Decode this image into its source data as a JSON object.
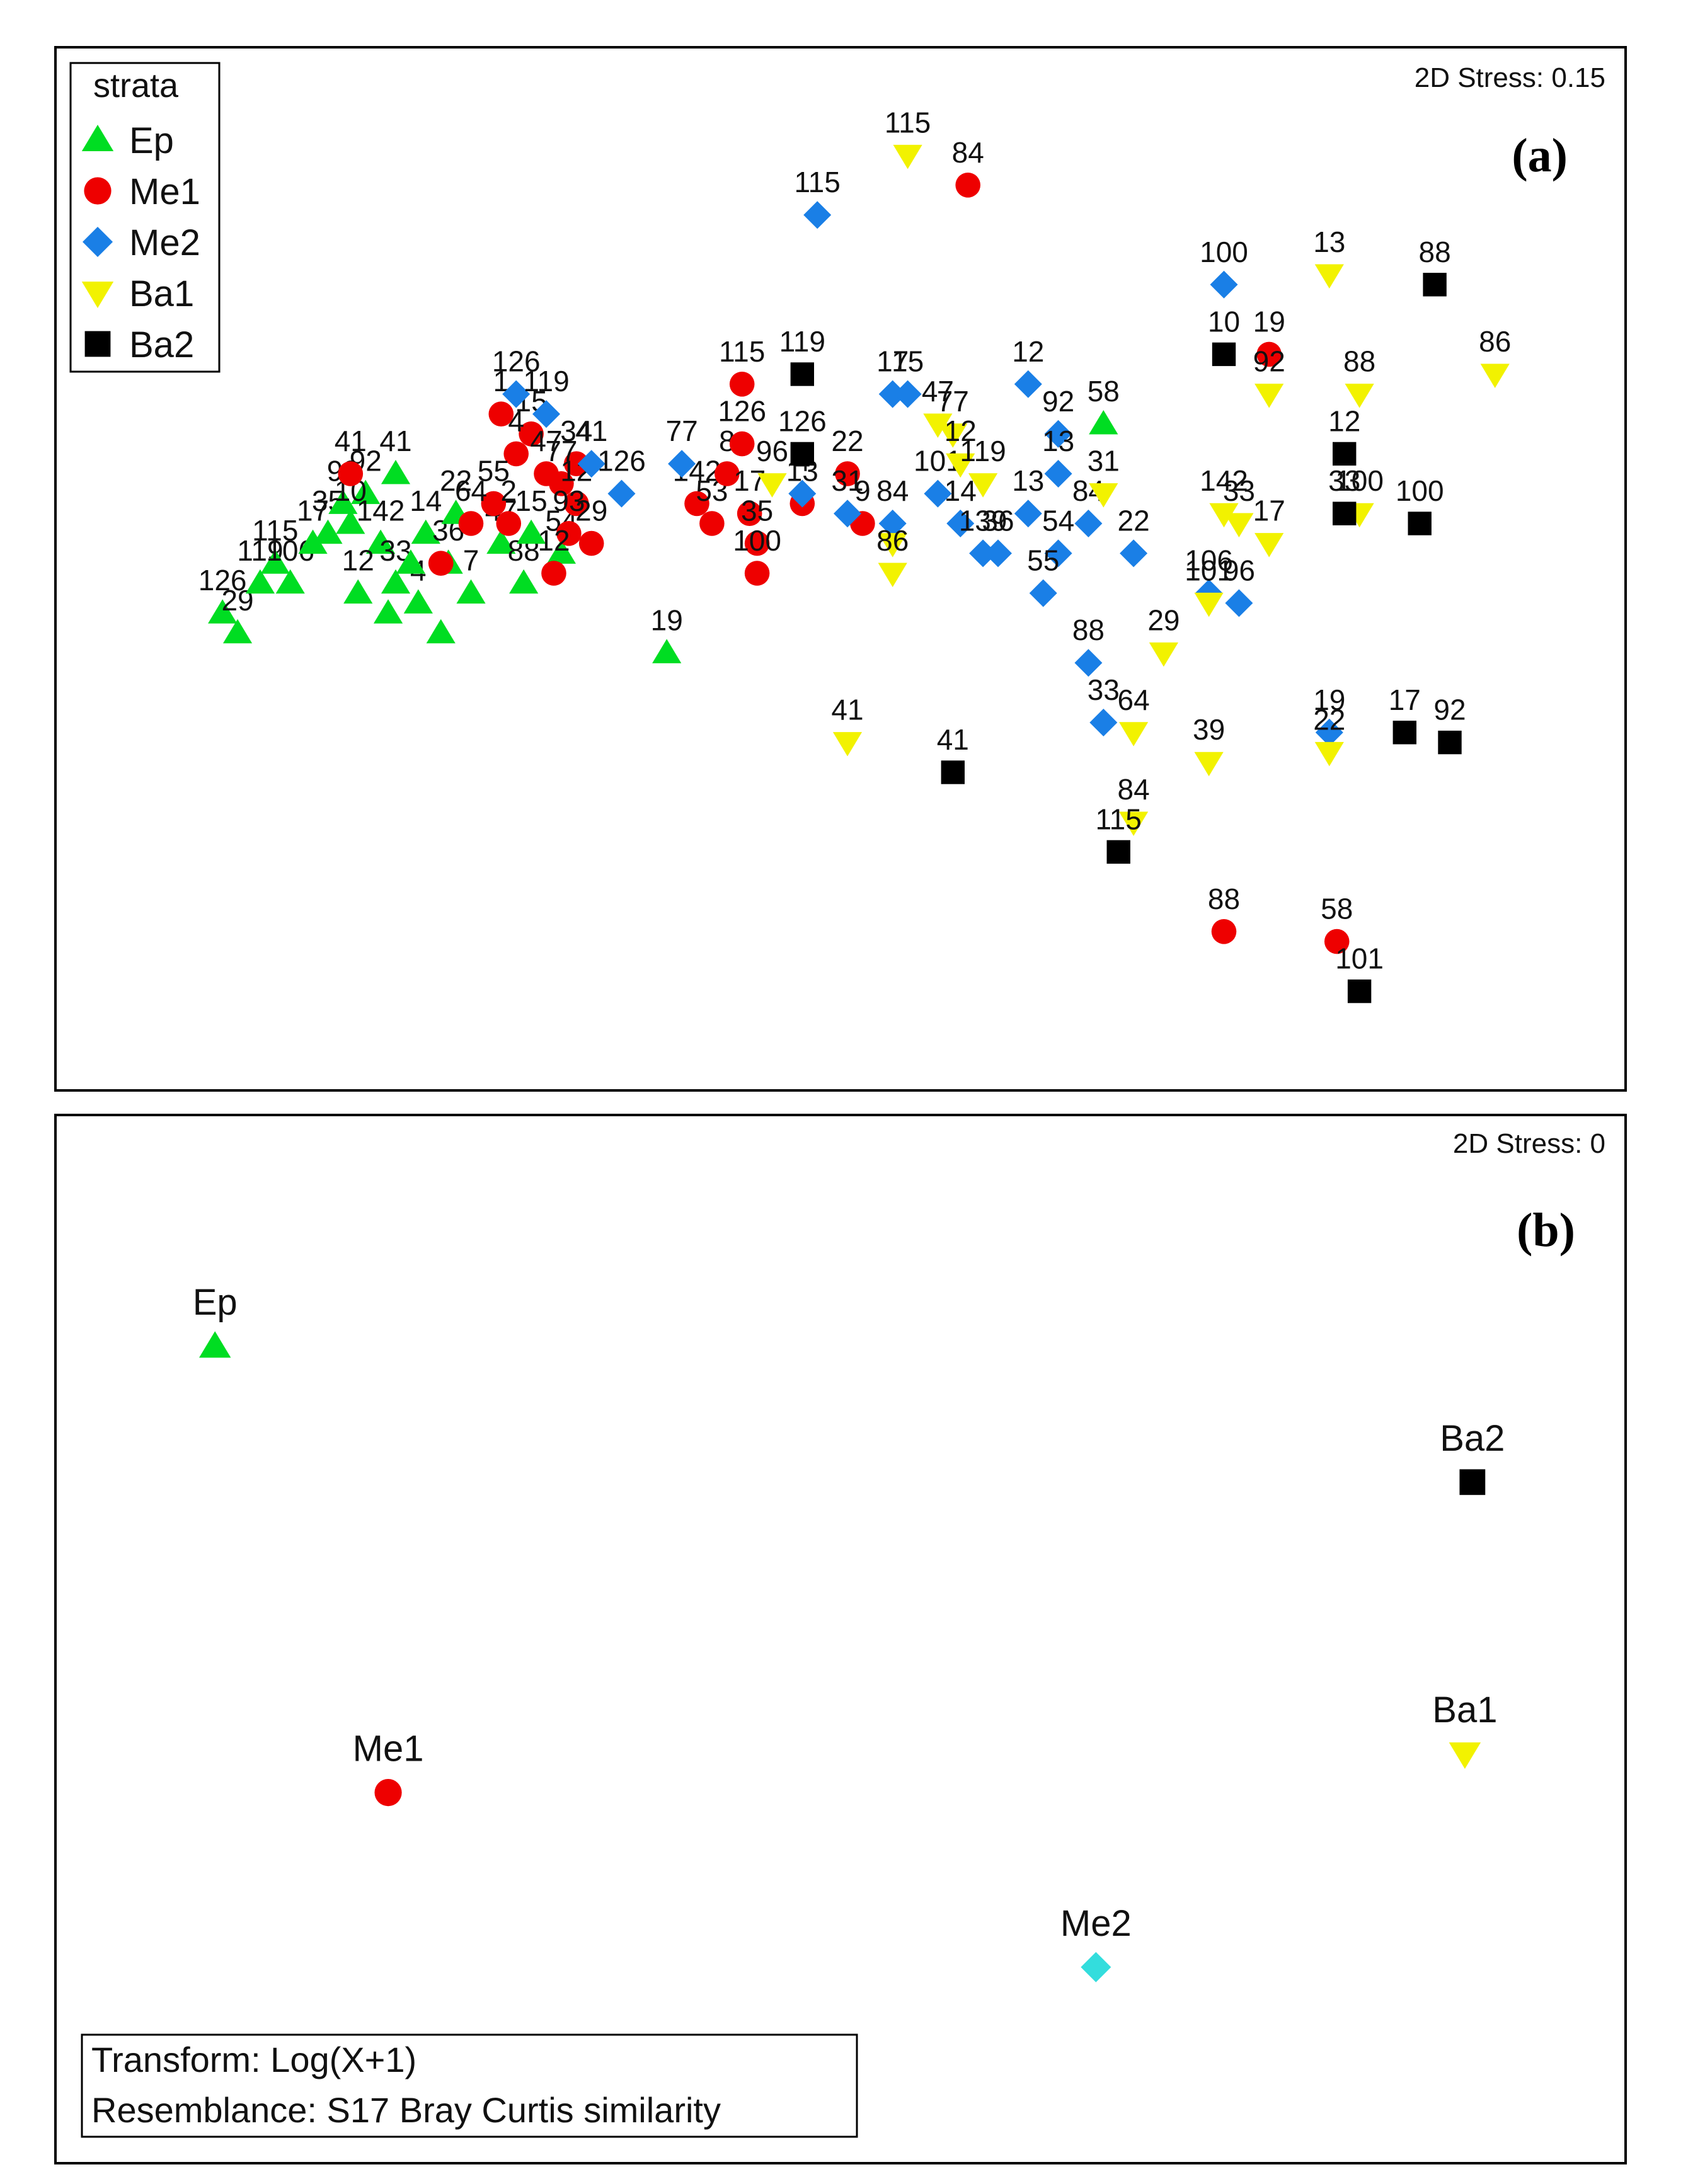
{
  "chart_data": [
    {
      "type": "scatter",
      "panel_label": "(a)",
      "stress": "2D Stress: 0.15",
      "grid": false,
      "axes_visible": false,
      "legend": {
        "title": "strata",
        "placement": "top-left",
        "entries": [
          {
            "name": "Ep",
            "marker": "triangle-up",
            "color": "#00dd22"
          },
          {
            "name": "Me1",
            "marker": "circle",
            "color": "#ee0000"
          },
          {
            "name": "Me2",
            "marker": "diamond",
            "color": "#1a7fe6"
          },
          {
            "name": "Ba1",
            "marker": "triangle-down",
            "color": "#f2f200"
          },
          {
            "name": "Ba2",
            "marker": "square",
            "color": "#000000"
          }
        ]
      },
      "xlim": [
        0,
        1
      ],
      "ylim": [
        0,
        1
      ],
      "series": [
        {
          "name": "Ep",
          "points": [
            {
              "x": 0.085,
              "y": 0.46,
              "label": "126"
            },
            {
              "x": 0.095,
              "y": 0.44,
              "label": "29"
            },
            {
              "x": 0.11,
              "y": 0.49,
              "label": "119"
            },
            {
              "x": 0.12,
              "y": 0.51,
              "label": "115"
            },
            {
              "x": 0.13,
              "y": 0.49,
              "label": "106"
            },
            {
              "x": 0.145,
              "y": 0.53,
              "label": "17"
            },
            {
              "x": 0.155,
              "y": 0.54,
              "label": "35"
            },
            {
              "x": 0.165,
              "y": 0.57,
              "label": "98"
            },
            {
              "x": 0.18,
              "y": 0.58,
              "label": "92"
            },
            {
              "x": 0.17,
              "y": 0.55,
              "label": "10"
            },
            {
              "x": 0.2,
              "y": 0.6,
              "label": "41"
            },
            {
              "x": 0.19,
              "y": 0.53,
              "label": "142"
            },
            {
              "x": 0.175,
              "y": 0.48,
              "label": "12"
            },
            {
              "x": 0.2,
              "y": 0.49,
              "label": "33"
            },
            {
              "x": 0.22,
              "y": 0.54,
              "label": "14"
            },
            {
              "x": 0.215,
              "y": 0.47,
              "label": "4"
            },
            {
              "x": 0.235,
              "y": 0.51,
              "label": "36"
            },
            {
              "x": 0.24,
              "y": 0.56,
              "label": "22"
            },
            {
              "x": 0.25,
              "y": 0.48,
              "label": "7"
            },
            {
              "x": 0.27,
              "y": 0.53,
              "label": "47"
            },
            {
              "x": 0.285,
              "y": 0.49,
              "label": "88"
            },
            {
              "x": 0.29,
              "y": 0.54,
              "label": "15"
            },
            {
              "x": 0.31,
              "y": 0.52,
              "label": "54"
            },
            {
              "x": 0.195,
              "y": 0.46,
              "label": ""
            },
            {
              "x": 0.23,
              "y": 0.44,
              "label": ""
            },
            {
              "x": 0.21,
              "y": 0.51,
              "label": ""
            },
            {
              "x": 0.38,
              "y": 0.42,
              "label": "19"
            },
            {
              "x": 0.67,
              "y": 0.65,
              "label": "58"
            }
          ]
        },
        {
          "name": "Me1",
          "points": [
            {
              "x": 0.17,
              "y": 0.6,
              "label": "41"
            },
            {
              "x": 0.27,
              "y": 0.66,
              "label": "1"
            },
            {
              "x": 0.29,
              "y": 0.64,
              "label": "15"
            },
            {
              "x": 0.28,
              "y": 0.62,
              "label": "4"
            },
            {
              "x": 0.3,
              "y": 0.6,
              "label": "47"
            },
            {
              "x": 0.32,
              "y": 0.61,
              "label": "34"
            },
            {
              "x": 0.31,
              "y": 0.59,
              "label": "77"
            },
            {
              "x": 0.265,
              "y": 0.57,
              "label": "55"
            },
            {
              "x": 0.25,
              "y": 0.55,
              "label": "64"
            },
            {
              "x": 0.275,
              "y": 0.55,
              "label": "2"
            },
            {
              "x": 0.32,
              "y": 0.57,
              "label": "12"
            },
            {
              "x": 0.33,
              "y": 0.53,
              "label": "29"
            },
            {
              "x": 0.315,
              "y": 0.54,
              "label": "93"
            },
            {
              "x": 0.305,
              "y": 0.5,
              "label": "12"
            },
            {
              "x": 0.23,
              "y": 0.51,
              "label": ""
            },
            {
              "x": 0.4,
              "y": 0.57,
              "label": "142"
            },
            {
              "x": 0.41,
              "y": 0.55,
              "label": "53"
            },
            {
              "x": 0.42,
              "y": 0.6,
              "label": "8"
            },
            {
              "x": 0.43,
              "y": 0.63,
              "label": "126"
            },
            {
              "x": 0.43,
              "y": 0.69,
              "label": "115"
            },
            {
              "x": 0.435,
              "y": 0.56,
              "label": "17"
            },
            {
              "x": 0.44,
              "y": 0.53,
              "label": "35"
            },
            {
              "x": 0.44,
              "y": 0.5,
              "label": "100"
            },
            {
              "x": 0.47,
              "y": 0.57,
              "label": "13"
            },
            {
              "x": 0.5,
              "y": 0.6,
              "label": "22"
            },
            {
              "x": 0.51,
              "y": 0.55,
              "label": "9"
            },
            {
              "x": 0.58,
              "y": 0.89,
              "label": "84"
            },
            {
              "x": 0.78,
              "y": 0.72,
              "label": "19"
            },
            {
              "x": 0.75,
              "y": 0.14,
              "label": "88"
            },
            {
              "x": 0.825,
              "y": 0.13,
              "label": "58"
            }
          ]
        },
        {
          "name": "Me2",
          "points": [
            {
              "x": 0.28,
              "y": 0.68,
              "label": "126"
            },
            {
              "x": 0.3,
              "y": 0.66,
              "label": "119"
            },
            {
              "x": 0.33,
              "y": 0.61,
              "label": "41"
            },
            {
              "x": 0.35,
              "y": 0.58,
              "label": "126"
            },
            {
              "x": 0.39,
              "y": 0.61,
              "label": "77"
            },
            {
              "x": 0.48,
              "y": 0.86,
              "label": "115"
            },
            {
              "x": 0.47,
              "y": 0.58,
              "label": "4"
            },
            {
              "x": 0.5,
              "y": 0.56,
              "label": "31"
            },
            {
              "x": 0.53,
              "y": 0.68,
              "label": "17"
            },
            {
              "x": 0.54,
              "y": 0.68,
              "label": "15"
            },
            {
              "x": 0.53,
              "y": 0.55,
              "label": "84"
            },
            {
              "x": 0.56,
              "y": 0.58,
              "label": "101"
            },
            {
              "x": 0.575,
              "y": 0.55,
              "label": "14"
            },
            {
              "x": 0.59,
              "y": 0.52,
              "label": "139"
            },
            {
              "x": 0.6,
              "y": 0.52,
              "label": "36"
            },
            {
              "x": 0.62,
              "y": 0.69,
              "label": "12"
            },
            {
              "x": 0.64,
              "y": 0.64,
              "label": "92"
            },
            {
              "x": 0.64,
              "y": 0.6,
              "label": "13"
            },
            {
              "x": 0.62,
              "y": 0.56,
              "label": "13"
            },
            {
              "x": 0.64,
              "y": 0.52,
              "label": "54"
            },
            {
              "x": 0.63,
              "y": 0.48,
              "label": "55"
            },
            {
              "x": 0.66,
              "y": 0.55,
              "label": "84"
            },
            {
              "x": 0.69,
              "y": 0.52,
              "label": "22"
            },
            {
              "x": 0.66,
              "y": 0.41,
              "label": "88"
            },
            {
              "x": 0.67,
              "y": 0.35,
              "label": "33"
            },
            {
              "x": 0.75,
              "y": 0.79,
              "label": "100"
            },
            {
              "x": 0.74,
              "y": 0.48,
              "label": "106"
            },
            {
              "x": 0.76,
              "y": 0.47,
              "label": "96"
            },
            {
              "x": 0.82,
              "y": 0.34,
              "label": "19"
            }
          ]
        },
        {
          "name": "Ba1",
          "points": [
            {
              "x": 0.54,
              "y": 0.92,
              "label": "115"
            },
            {
              "x": 0.56,
              "y": 0.65,
              "label": "47"
            },
            {
              "x": 0.57,
              "y": 0.64,
              "label": "77"
            },
            {
              "x": 0.575,
              "y": 0.61,
              "label": "12"
            },
            {
              "x": 0.59,
              "y": 0.59,
              "label": "119"
            },
            {
              "x": 0.45,
              "y": 0.59,
              "label": "96"
            },
            {
              "x": 0.53,
              "y": 0.53,
              "label": ""
            },
            {
              "x": 0.53,
              "y": 0.5,
              "label": "86"
            },
            {
              "x": 0.5,
              "y": 0.33,
              "label": "41"
            },
            {
              "x": 0.67,
              "y": 0.58,
              "label": "31"
            },
            {
              "x": 0.71,
              "y": 0.42,
              "label": "29"
            },
            {
              "x": 0.69,
              "y": 0.34,
              "label": "64"
            },
            {
              "x": 0.69,
              "y": 0.25,
              "label": "84"
            },
            {
              "x": 0.74,
              "y": 0.31,
              "label": "39"
            },
            {
              "x": 0.75,
              "y": 0.56,
              "label": "142"
            },
            {
              "x": 0.76,
              "y": 0.55,
              "label": "33"
            },
            {
              "x": 0.74,
              "y": 0.47,
              "label": "101"
            },
            {
              "x": 0.78,
              "y": 0.53,
              "label": "17"
            },
            {
              "x": 0.78,
              "y": 0.68,
              "label": "92"
            },
            {
              "x": 0.82,
              "y": 0.8,
              "label": "13"
            },
            {
              "x": 0.84,
              "y": 0.68,
              "label": "88"
            },
            {
              "x": 0.84,
              "y": 0.56,
              "label": "100"
            },
            {
              "x": 0.82,
              "y": 0.32,
              "label": "22"
            },
            {
              "x": 0.93,
              "y": 0.7,
              "label": "86"
            }
          ]
        },
        {
          "name": "Ba2",
          "points": [
            {
              "x": 0.47,
              "y": 0.7,
              "label": "119"
            },
            {
              "x": 0.47,
              "y": 0.62,
              "label": "126"
            },
            {
              "x": 0.57,
              "y": 0.3,
              "label": "41"
            },
            {
              "x": 0.68,
              "y": 0.22,
              "label": "115"
            },
            {
              "x": 0.75,
              "y": 0.72,
              "label": "10"
            },
            {
              "x": 0.83,
              "y": 0.62,
              "label": "12"
            },
            {
              "x": 0.83,
              "y": 0.56,
              "label": "33"
            },
            {
              "x": 0.88,
              "y": 0.55,
              "label": "100"
            },
            {
              "x": 0.89,
              "y": 0.79,
              "label": "88"
            },
            {
              "x": 0.87,
              "y": 0.34,
              "label": "17"
            },
            {
              "x": 0.9,
              "y": 0.33,
              "label": "92"
            },
            {
              "x": 0.84,
              "y": 0.08,
              "label": "101"
            }
          ]
        }
      ]
    },
    {
      "type": "scatter",
      "panel_label": "(b)",
      "stress": "2D Stress: 0",
      "grid": false,
      "axes_visible": false,
      "xlim": [
        0,
        1
      ],
      "ylim": [
        0,
        1
      ],
      "series": [
        {
          "name": "Ep",
          "marker": "triangle-up",
          "color": "#00dd22",
          "points": [
            {
              "x": 0.08,
              "y": 0.82,
              "label": "Ep"
            }
          ]
        },
        {
          "name": "Me1",
          "marker": "circle",
          "color": "#ee0000",
          "points": [
            {
              "x": 0.195,
              "y": 0.36,
              "label": "Me1"
            }
          ]
        },
        {
          "name": "Me2",
          "marker": "diamond",
          "color": "#33dddd",
          "points": [
            {
              "x": 0.665,
              "y": 0.18,
              "label": "Me2"
            }
          ]
        },
        {
          "name": "Ba1",
          "marker": "triangle-down",
          "color": "#f2f200",
          "points": [
            {
              "x": 0.91,
              "y": 0.4,
              "label": "Ba1"
            }
          ]
        },
        {
          "name": "Ba2",
          "marker": "square",
          "color": "#000000",
          "points": [
            {
              "x": 0.915,
              "y": 0.68,
              "label": "Ba2"
            }
          ]
        }
      ],
      "notes": [
        "Transform: Log(X+1)",
        "Resemblance: S17 Bray Curtis similarity"
      ]
    }
  ]
}
